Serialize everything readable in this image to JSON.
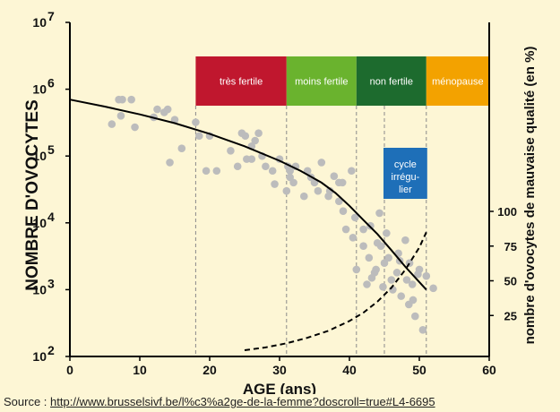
{
  "chart_data": {
    "type": "scatter",
    "title": "",
    "xlabel": "AGE (ans)",
    "ylabel": "NOMBRE D'OVOCYTES",
    "ylabel_right": "nombre d'ovocytes de mauvaise qualité (en %)",
    "xlim": [
      0,
      60
    ],
    "x_ticks": [
      "0",
      "10",
      "20",
      "30",
      "40",
      "50",
      "60"
    ],
    "y_scale": "log",
    "ylim": [
      100,
      10000000
    ],
    "y_ticks": [
      {
        "base": "10",
        "exp": "2"
      },
      {
        "base": "10",
        "exp": "3"
      },
      {
        "base": "10",
        "exp": "4"
      },
      {
        "base": "10",
        "exp": "5"
      },
      {
        "base": "10",
        "exp": "6"
      },
      {
        "base": "10",
        "exp": "7"
      }
    ],
    "y_right_ticks": [
      "25",
      "50",
      "75",
      "100"
    ],
    "y_right_values": [
      25,
      50,
      75,
      100
    ],
    "grid": false,
    "phases": [
      {
        "label": "très fertile",
        "x_start": 18,
        "x_end": 31,
        "color": "#c0172e"
      },
      {
        "label": "moins fertile",
        "x_start": 31,
        "x_end": 41,
        "color": "#6ab32e"
      },
      {
        "label": "non fertile",
        "x_start": 41,
        "x_end": 51,
        "color": "#1d6b2e"
      },
      {
        "label": "ménopause",
        "x_start": 51,
        "x_end": 60,
        "color": "#f3a200"
      }
    ],
    "annotation": {
      "lines": [
        "cycle",
        "irrégu-",
        "lier"
      ],
      "x_start": 45,
      "x_end": 51,
      "color": "#1e6fb8"
    },
    "vlines_x": [
      18,
      31,
      41,
      45,
      51
    ],
    "series": [
      {
        "kind": "points",
        "color": "#bcbcbc",
        "x": [
          6,
          7.3,
          7.5,
          8.8,
          9.3,
          7,
          12,
          12.5,
          13.5,
          14,
          14.3,
          15,
          16,
          18,
          18.5,
          19.5,
          20,
          21,
          23,
          24,
          24.6,
          25.1,
          25.3,
          26,
          26,
          26.5,
          27,
          27.5,
          28,
          29,
          29.3,
          30,
          31,
          31.2,
          31.5,
          31.5,
          32,
          32.3,
          33.5,
          34,
          34.5,
          35,
          35.5,
          36,
          37,
          37.2,
          37.8,
          38.5,
          38.5,
          39,
          39.1,
          39.5,
          40.3,
          40.5,
          40.8,
          41,
          42,
          42,
          42.5,
          42.8,
          43,
          43.2,
          43.6,
          43.8,
          44,
          44.3,
          44.5,
          44.8,
          45,
          45.3,
          45.6,
          46,
          46.2,
          46.8,
          47,
          47.2,
          47.4,
          48,
          48.2,
          48.5,
          48.6,
          49,
          49.1,
          49.4,
          49.8,
          50,
          50.5,
          51,
          52
        ],
        "y": [
          300000,
          400000,
          700000,
          700000,
          270000,
          700000,
          380000,
          500000,
          450000,
          500000,
          80000,
          350000,
          130000,
          320000,
          200000,
          60000,
          200000,
          60000,
          120000,
          70000,
          220000,
          200000,
          90000,
          140000,
          90000,
          170000,
          220000,
          100000,
          70000,
          60000,
          38000,
          90000,
          30000,
          70000,
          60000,
          48000,
          40000,
          70000,
          25000,
          60000,
          48000,
          40000,
          30000,
          80000,
          25000,
          30000,
          50000,
          40000,
          21000,
          40000,
          15000,
          8000,
          60000,
          6000,
          12000,
          2000,
          4500,
          8000,
          1200,
          3000,
          9000,
          1500,
          1800,
          2000,
          5000,
          14000,
          4500,
          1100,
          2500,
          7000,
          3000,
          1400,
          1000,
          1800,
          3500,
          2700,
          800,
          5500,
          1400,
          600,
          2500,
          1200,
          700,
          400,
          1700,
          2000,
          250,
          1600,
          1050
        ]
      },
      {
        "kind": "curve",
        "name": "",
        "color": "#000000",
        "x": [
          0,
          5,
          10,
          15,
          20,
          25,
          30,
          33,
          36,
          38,
          40,
          42,
          44,
          46,
          48,
          50,
          51
        ],
        "y": [
          700000,
          550000,
          420000,
          310000,
          215000,
          140000,
          85000,
          60000,
          40000,
          28000,
          18000,
          11000,
          6800,
          3900,
          2200,
          1300,
          1000
        ]
      },
      {
        "kind": "curve",
        "name": "",
        "axis": "right",
        "color": "#000000",
        "dashed": true,
        "x": [
          25,
          28,
          31,
          34,
          37,
          40,
          42,
          44,
          46,
          48,
          50,
          51
        ],
        "y": [
          0,
          2,
          5,
          9,
          14,
          21,
          27,
          35,
          45,
          58,
          74,
          85
        ]
      }
    ]
  },
  "source": {
    "prefix": "Source : ",
    "url": "http://www.brusselsivf.be/l%c3%a2ge-de-la-femme?doscroll=true#L4-6695"
  }
}
